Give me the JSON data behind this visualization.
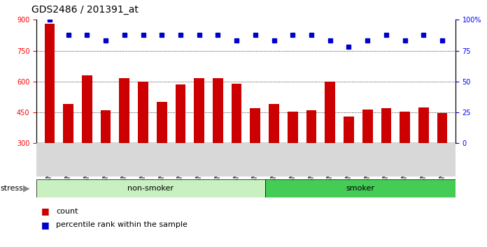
{
  "title": "GDS2486 / 201391_at",
  "samples": [
    "GSM101095",
    "GSM101096",
    "GSM101097",
    "GSM101098",
    "GSM101099",
    "GSM101100",
    "GSM101101",
    "GSM101102",
    "GSM101103",
    "GSM101104",
    "GSM101105",
    "GSM101106",
    "GSM101107",
    "GSM101108",
    "GSM101109",
    "GSM101110",
    "GSM101111",
    "GSM101112",
    "GSM101113",
    "GSM101114",
    "GSM101115",
    "GSM101116"
  ],
  "counts": [
    880,
    490,
    630,
    460,
    615,
    600,
    500,
    585,
    615,
    615,
    590,
    470,
    490,
    455,
    460,
    600,
    430,
    465,
    470,
    455,
    475,
    448
  ],
  "percentile_ranks": [
    100,
    88,
    88,
    83,
    88,
    88,
    88,
    88,
    88,
    88,
    83,
    88,
    83,
    88,
    88,
    83,
    78,
    83,
    88,
    83,
    88,
    83
  ],
  "bar_color": "#CC0000",
  "dot_color": "#0000CC",
  "ylim_left": [
    300,
    900
  ],
  "ylim_right": [
    0,
    100
  ],
  "yticks_left": [
    300,
    450,
    600,
    750,
    900
  ],
  "yticks_right": [
    0,
    25,
    50,
    75,
    100
  ],
  "ns_color": "#c8f0c0",
  "smoker_color": "#44cc55",
  "stress_label": "stress",
  "legend_count_label": "count",
  "legend_pct_label": "percentile rank within the sample",
  "title_fontsize": 10,
  "tick_fontsize": 7,
  "group_fontsize": 8,
  "legend_fontsize": 8
}
